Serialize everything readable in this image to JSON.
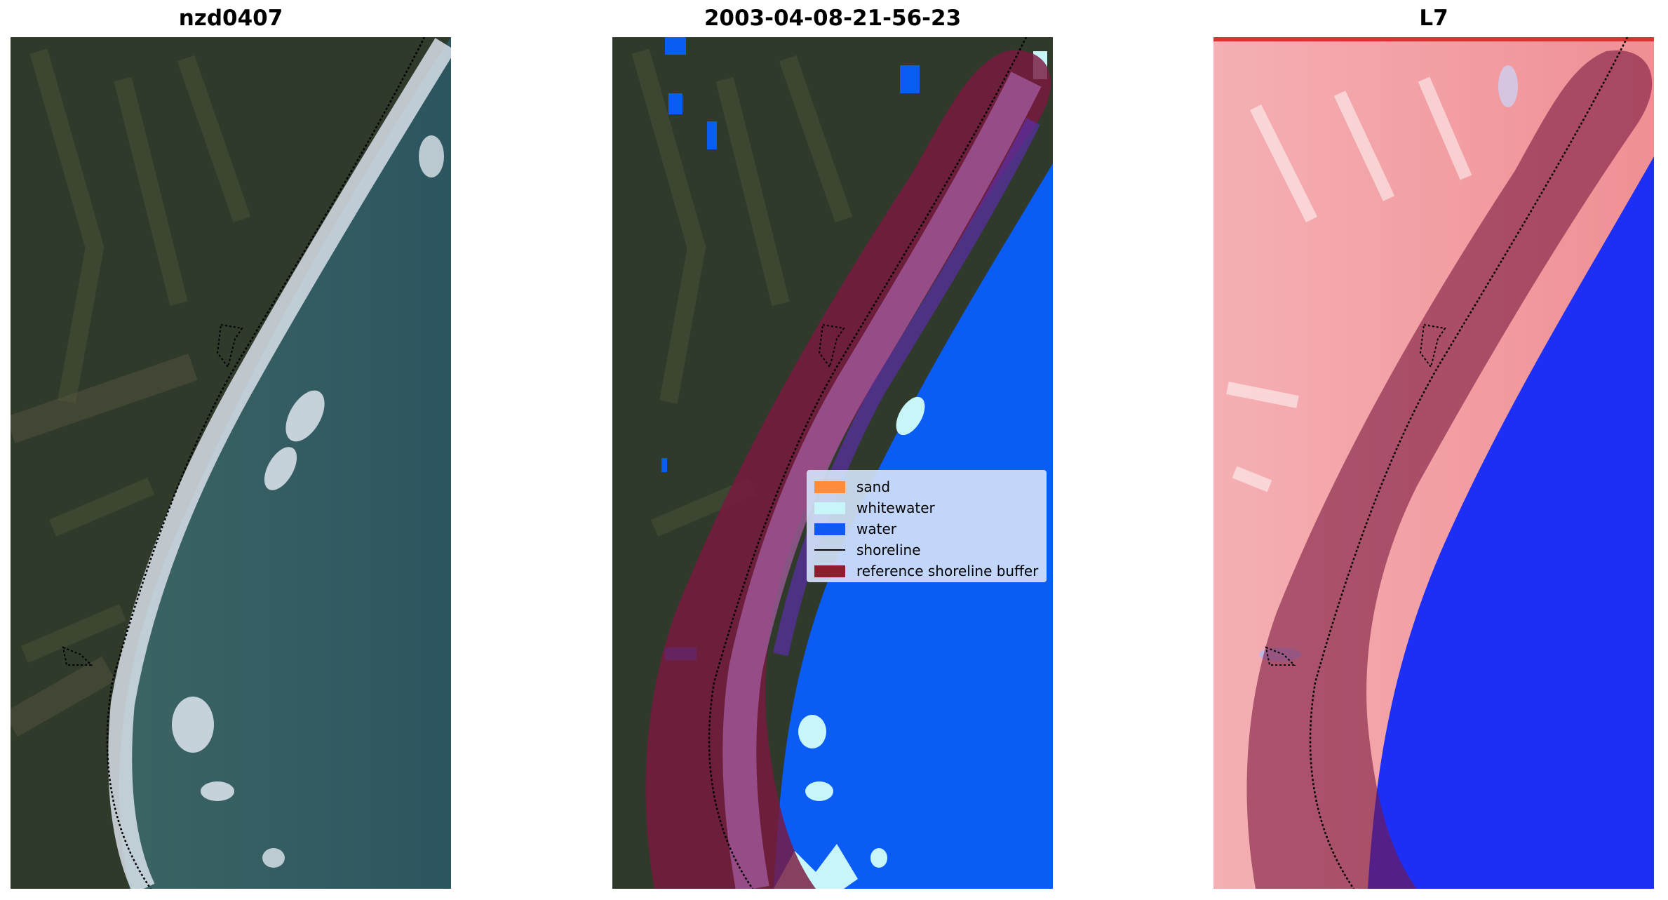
{
  "panels": [
    {
      "title": "nzd0407",
      "type": "rgb-image"
    },
    {
      "title": "2003-04-08-21-56-23",
      "type": "classified-image"
    },
    {
      "title": "L7",
      "type": "index-image"
    }
  ],
  "legend": {
    "items": [
      {
        "label": "sand",
        "color": "#ff8c3a",
        "kind": "patch"
      },
      {
        "label": "whitewater",
        "color": "#c8f5f8",
        "kind": "patch"
      },
      {
        "label": "water",
        "color": "#0f5af0",
        "kind": "patch"
      },
      {
        "label": "shoreline",
        "color": "#000000",
        "kind": "line"
      },
      {
        "label": "reference shoreline buffer",
        "color": "#8b1f2e",
        "kind": "patch"
      }
    ]
  },
  "colors": {
    "land": "#2e3b2c",
    "sea_rgb": "#2f5a60",
    "surf": "#d9e1ea",
    "water_class": "#0a5cf5",
    "buffer": "#7a1840",
    "index_red": "#f1a4a8",
    "index_blue": "#1d2ef5"
  }
}
